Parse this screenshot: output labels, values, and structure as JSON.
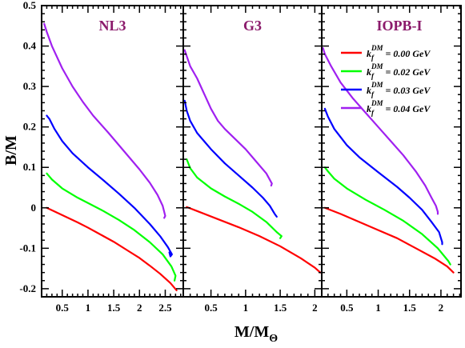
{
  "chart_data": {
    "type": "line",
    "ylabel": "B/M",
    "xlabel_main": "M/M",
    "xlabel_sub": "Θ",
    "ylim": [
      -0.22,
      0.5
    ],
    "yticks": [
      -0.2,
      -0.1,
      0,
      0.1,
      0.2,
      0.3,
      0.4,
      0.5
    ],
    "ytick_labels": [
      "-0.2",
      "-0.1",
      "0",
      "0.1",
      "0.2",
      "0.3",
      "0.4",
      "0.5"
    ],
    "grid": false,
    "legend": {
      "placement": "top-right",
      "entries": [
        {
          "prefix": "k",
          "sub": "f",
          "sup": "DM",
          "suffix": " = 0.00 GeV",
          "color": "#ff0000"
        },
        {
          "prefix": "k",
          "sub": "f",
          "sup": "DM",
          "suffix": " = 0.02 GeV",
          "color": "#00ff00"
        },
        {
          "prefix": "k",
          "sub": "f",
          "sup": "DM",
          "suffix": " = 0.03 GeV",
          "color": "#0000ff"
        },
        {
          "prefix": "k",
          "sub": "f",
          "sup": "DM",
          "suffix": " = 0.04 GeV",
          "color": "#a020f0"
        }
      ]
    },
    "panels": [
      {
        "title": "NL3",
        "title_color": "#8b1a6b",
        "xlim": [
          0.1,
          2.85
        ],
        "xticks": [
          0.5,
          1,
          1.5,
          2,
          2.5
        ],
        "xtick_labels": [
          "0.5",
          "1",
          "1.5",
          "2",
          "2.5"
        ],
        "series": [
          {
            "name": "kf 0.00",
            "color": "#ff0000",
            "points": [
              [
                0.2,
                0.0
              ],
              [
                0.5,
                -0.018
              ],
              [
                0.8,
                -0.036
              ],
              [
                1.0,
                -0.049
              ],
              [
                1.2,
                -0.063
              ],
              [
                1.5,
                -0.084
              ],
              [
                1.8,
                -0.108
              ],
              [
                2.0,
                -0.124
              ],
              [
                2.2,
                -0.143
              ],
              [
                2.4,
                -0.163
              ],
              [
                2.6,
                -0.186
              ],
              [
                2.72,
                -0.204
              ]
            ]
          },
          {
            "name": "kf 0.02",
            "color": "#00ff00",
            "points": [
              [
                0.2,
                0.085
              ],
              [
                0.3,
                0.07
              ],
              [
                0.5,
                0.048
              ],
              [
                0.8,
                0.025
              ],
              [
                1.0,
                0.012
              ],
              [
                1.3,
                -0.008
              ],
              [
                1.6,
                -0.03
              ],
              [
                1.9,
                -0.055
              ],
              [
                2.2,
                -0.085
              ],
              [
                2.45,
                -0.115
              ],
              [
                2.62,
                -0.145
              ],
              [
                2.7,
                -0.168
              ],
              [
                2.68,
                -0.18
              ]
            ]
          },
          {
            "name": "kf 0.03",
            "color": "#0000ff",
            "points": [
              [
                0.2,
                0.228
              ],
              [
                0.25,
                0.22
              ],
              [
                0.35,
                0.195
              ],
              [
                0.5,
                0.165
              ],
              [
                0.7,
                0.135
              ],
              [
                1.0,
                0.1
              ],
              [
                1.3,
                0.068
              ],
              [
                1.6,
                0.035
              ],
              [
                1.9,
                0.0
              ],
              [
                2.2,
                -0.04
              ],
              [
                2.4,
                -0.07
              ],
              [
                2.55,
                -0.097
              ],
              [
                2.63,
                -0.115
              ],
              [
                2.6,
                -0.12
              ],
              [
                2.58,
                -0.11
              ]
            ]
          },
          {
            "name": "kf 0.04",
            "color": "#a020f0",
            "points": [
              [
                0.15,
                0.455
              ],
              [
                0.2,
                0.435
              ],
              [
                0.3,
                0.4
              ],
              [
                0.5,
                0.345
              ],
              [
                0.7,
                0.3
              ],
              [
                0.9,
                0.262
              ],
              [
                1.1,
                0.228
              ],
              [
                1.4,
                0.185
              ],
              [
                1.7,
                0.14
              ],
              [
                2.0,
                0.095
              ],
              [
                2.2,
                0.062
              ],
              [
                2.35,
                0.032
              ],
              [
                2.45,
                0.005
              ],
              [
                2.5,
                -0.02
              ],
              [
                2.48,
                -0.025
              ]
            ]
          }
        ]
      },
      {
        "title": "G3",
        "title_color": "#8b1a6b",
        "xlim": [
          0.1,
          2.1
        ],
        "xticks": [
          0.5,
          1,
          1.5,
          2
        ],
        "xtick_labels": [
          "0.5",
          "1",
          "1.5",
          "2"
        ],
        "series": [
          {
            "name": "kf 0.00",
            "color": "#ff0000",
            "points": [
              [
                0.15,
                0.002
              ],
              [
                0.3,
                -0.008
              ],
              [
                0.6,
                -0.028
              ],
              [
                0.9,
                -0.048
              ],
              [
                1.2,
                -0.07
              ],
              [
                1.5,
                -0.095
              ],
              [
                1.8,
                -0.125
              ],
              [
                2.0,
                -0.148
              ],
              [
                2.08,
                -0.16
              ]
            ]
          },
          {
            "name": "kf 0.02",
            "color": "#00ff00",
            "points": [
              [
                0.15,
                0.12
              ],
              [
                0.2,
                0.098
              ],
              [
                0.3,
                0.075
              ],
              [
                0.5,
                0.048
              ],
              [
                0.7,
                0.028
              ],
              [
                0.9,
                0.01
              ],
              [
                1.1,
                -0.01
              ],
              [
                1.3,
                -0.035
              ],
              [
                1.45,
                -0.06
              ],
              [
                1.52,
                -0.07
              ],
              [
                1.5,
                -0.075
              ]
            ]
          },
          {
            "name": "kf 0.03",
            "color": "#0000ff",
            "points": [
              [
                0.12,
                0.265
              ],
              [
                0.15,
                0.24
              ],
              [
                0.2,
                0.215
              ],
              [
                0.3,
                0.185
              ],
              [
                0.5,
                0.145
              ],
              [
                0.7,
                0.11
              ],
              [
                0.9,
                0.08
              ],
              [
                1.1,
                0.05
              ],
              [
                1.25,
                0.025
              ],
              [
                1.35,
                0.005
              ],
              [
                1.42,
                -0.015
              ],
              [
                1.45,
                -0.022
              ]
            ]
          },
          {
            "name": "kf 0.04",
            "color": "#a020f0",
            "points": [
              [
                0.12,
                0.39
              ],
              [
                0.15,
                0.375
              ],
              [
                0.2,
                0.35
              ],
              [
                0.3,
                0.32
              ],
              [
                0.5,
                0.245
              ],
              [
                0.6,
                0.215
              ],
              [
                0.7,
                0.195
              ],
              [
                0.85,
                0.17
              ],
              [
                1.0,
                0.145
              ],
              [
                1.15,
                0.115
              ],
              [
                1.3,
                0.085
              ],
              [
                1.38,
                0.06
              ],
              [
                1.37,
                0.055
              ]
            ]
          }
        ]
      },
      {
        "title": "IOPB-I",
        "title_color": "#8b1a6b",
        "xlim": [
          0.1,
          2.32
        ],
        "xticks": [
          0.5,
          1,
          1.5,
          2
        ],
        "xtick_labels": [
          "0.5",
          "1",
          "1.5",
          "2"
        ],
        "series": [
          {
            "name": "kf 0.00",
            "color": "#ff0000",
            "points": [
              [
                0.15,
                0.0
              ],
              [
                0.4,
                -0.015
              ],
              [
                0.7,
                -0.035
              ],
              [
                1.0,
                -0.055
              ],
              [
                1.3,
                -0.075
              ],
              [
                1.6,
                -0.1
              ],
              [
                1.9,
                -0.125
              ],
              [
                2.1,
                -0.145
              ],
              [
                2.2,
                -0.16
              ]
            ]
          },
          {
            "name": "kf 0.02",
            "color": "#00ff00",
            "points": [
              [
                0.15,
                0.1
              ],
              [
                0.2,
                0.09
              ],
              [
                0.3,
                0.072
              ],
              [
                0.5,
                0.048
              ],
              [
                0.8,
                0.02
              ],
              [
                1.1,
                -0.005
              ],
              [
                1.4,
                -0.032
              ],
              [
                1.7,
                -0.065
              ],
              [
                1.95,
                -0.1
              ],
              [
                2.12,
                -0.132
              ],
              [
                2.15,
                -0.14
              ]
            ]
          },
          {
            "name": "kf 0.03",
            "color": "#0000ff",
            "points": [
              [
                0.15,
                0.245
              ],
              [
                0.2,
                0.225
              ],
              [
                0.3,
                0.195
              ],
              [
                0.5,
                0.155
              ],
              [
                0.7,
                0.125
              ],
              [
                1.0,
                0.088
              ],
              [
                1.3,
                0.052
              ],
              [
                1.5,
                0.025
              ],
              [
                1.7,
                -0.005
              ],
              [
                1.85,
                -0.035
              ],
              [
                1.97,
                -0.06
              ],
              [
                2.02,
                -0.085
              ],
              [
                2.02,
                -0.09
              ]
            ]
          },
          {
            "name": "kf 0.04",
            "color": "#a020f0",
            "points": [
              [
                0.12,
                0.395
              ],
              [
                0.15,
                0.38
              ],
              [
                0.25,
                0.35
              ],
              [
                0.4,
                0.31
              ],
              [
                0.6,
                0.27
              ],
              [
                0.8,
                0.235
              ],
              [
                1.0,
                0.2
              ],
              [
                1.2,
                0.165
              ],
              [
                1.4,
                0.13
              ],
              [
                1.6,
                0.09
              ],
              [
                1.75,
                0.055
              ],
              [
                1.85,
                0.025
              ],
              [
                1.92,
                0.005
              ],
              [
                1.95,
                -0.01
              ],
              [
                1.95,
                -0.015
              ]
            ]
          }
        ]
      }
    ]
  }
}
